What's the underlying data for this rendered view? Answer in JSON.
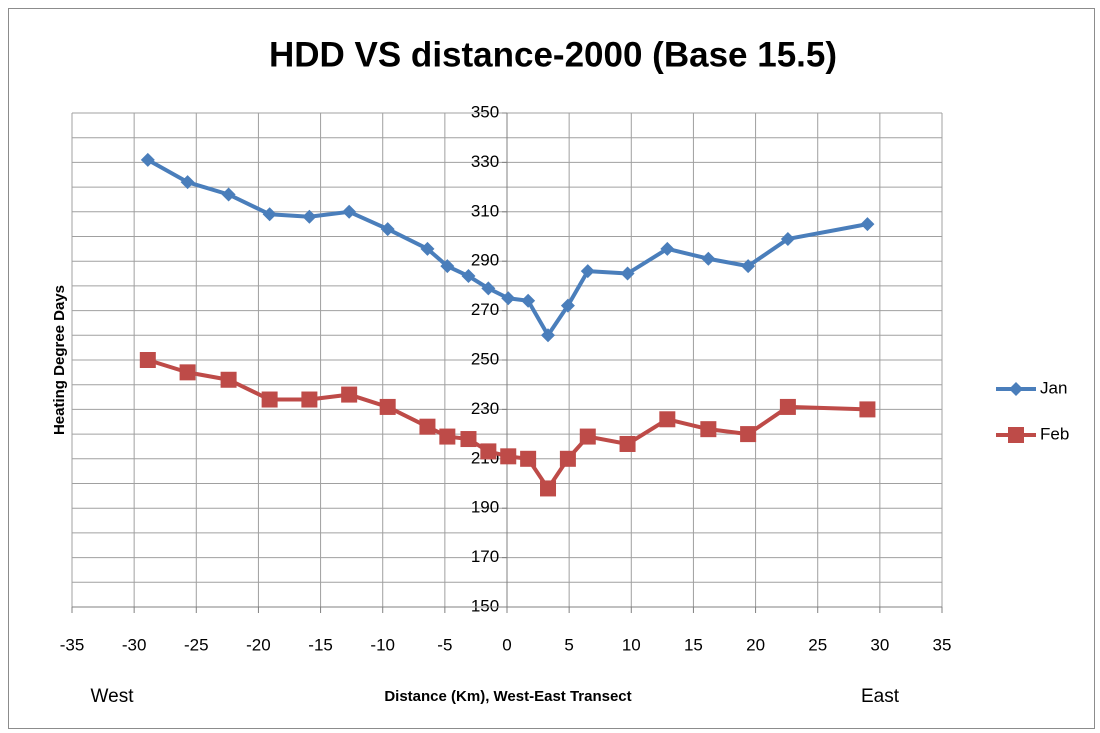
{
  "chart_data": {
    "type": "line",
    "title": "HDD VS distance-2000 (Base 15.5)",
    "x_label": "Distance (Km), West-East Transect",
    "y_label": "Heating Degree Days",
    "annotations": [
      "West",
      "East"
    ],
    "x": [
      -28.9,
      -25.7,
      -22.4,
      -19.1,
      -15.9,
      -12.7,
      -9.6,
      -6.4,
      -4.8,
      -3.1,
      -1.5,
      0.1,
      1.7,
      3.3,
      4.9,
      6.5,
      9.7,
      12.9,
      16.2,
      19.4,
      22.6,
      29.0
    ],
    "series": [
      {
        "name": "Jan",
        "color": "#4a7ebb",
        "marker": "diamond",
        "values": [
          331,
          322,
          317,
          309,
          308,
          310,
          303,
          295,
          288,
          284,
          279,
          275,
          274,
          260,
          272,
          286,
          285,
          295,
          291,
          288,
          299,
          305
        ]
      },
      {
        "name": "Feb",
        "color": "#be4b48",
        "marker": "square",
        "values": [
          250,
          245,
          242,
          234,
          234,
          236,
          231,
          223,
          219,
          218,
          213,
          211,
          210,
          198,
          210,
          219,
          216,
          226,
          222,
          220,
          231,
          230
        ]
      }
    ],
    "xlim": [
      -35,
      35
    ],
    "xticks": [
      -35,
      -30,
      -25,
      -20,
      -15,
      -10,
      -5,
      0,
      5,
      10,
      15,
      20,
      25,
      30,
      35
    ],
    "ylim": [
      150,
      350
    ],
    "yticks": [
      150,
      170,
      190,
      210,
      230,
      250,
      270,
      290,
      310,
      330,
      350
    ],
    "minor_yticks": [
      160,
      180,
      200,
      220,
      240,
      260,
      280,
      300,
      320,
      340
    ],
    "grid": true,
    "legend": "right"
  }
}
